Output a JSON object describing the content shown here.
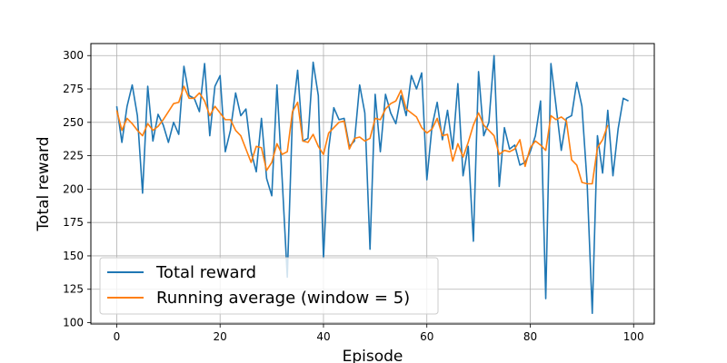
{
  "chart_data": {
    "type": "line",
    "title": "",
    "xlabel": "Episode",
    "ylabel": "Total reward",
    "xlim": [
      -5,
      104
    ],
    "ylim": [
      99,
      309
    ],
    "xticks": [
      0,
      20,
      40,
      60,
      80,
      100
    ],
    "yticks": [
      100,
      125,
      150,
      175,
      200,
      225,
      250,
      275,
      300
    ],
    "grid": true,
    "legend_position": "lower-left",
    "series": [
      {
        "name": "Total reward",
        "color": "#1f77b4",
        "x": [
          0,
          1,
          2,
          3,
          4,
          5,
          6,
          7,
          8,
          9,
          10,
          11,
          12,
          13,
          14,
          15,
          16,
          17,
          18,
          19,
          20,
          21,
          22,
          23,
          24,
          25,
          26,
          27,
          28,
          29,
          30,
          31,
          32,
          33,
          34,
          35,
          36,
          37,
          38,
          39,
          40,
          41,
          42,
          43,
          44,
          45,
          46,
          47,
          48,
          49,
          50,
          51,
          52,
          53,
          54,
          55,
          56,
          57,
          58,
          59,
          60,
          61,
          62,
          63,
          64,
          65,
          66,
          67,
          68,
          69,
          70,
          71,
          72,
          73,
          74,
          75,
          76,
          77,
          78,
          79,
          80,
          81,
          82,
          83,
          84,
          85,
          86,
          87,
          88,
          89,
          90,
          91,
          92,
          93,
          94,
          95,
          96,
          97,
          98,
          99
        ],
        "values": [
          262,
          235,
          262,
          278,
          255,
          197,
          277,
          236,
          256,
          248,
          235,
          250,
          241,
          292,
          270,
          268,
          258,
          294,
          240,
          277,
          285,
          228,
          244,
          272,
          255,
          260,
          228,
          213,
          253,
          208,
          195,
          278,
          208,
          134,
          255,
          289,
          236,
          238,
          295,
          270,
          148,
          230,
          261,
          252,
          253,
          232,
          236,
          278,
          257,
          155,
          271,
          228,
          271,
          257,
          249,
          270,
          255,
          285,
          275,
          287,
          207,
          247,
          265,
          237,
          259,
          230,
          279,
          210,
          232,
          161,
          288,
          240,
          250,
          300,
          202,
          246,
          230,
          233,
          218,
          220,
          228,
          240,
          266,
          118,
          294,
          262,
          229,
          253,
          255,
          280,
          262,
          205,
          107,
          240,
          212,
          259,
          210,
          245,
          268,
          266
        ]
      },
      {
        "name": "Running average (window = 5)",
        "color": "#ff7f0e",
        "x": [
          0,
          1,
          2,
          3,
          4,
          5,
          6,
          7,
          8,
          9,
          10,
          11,
          12,
          13,
          14,
          15,
          16,
          17,
          18,
          19,
          20,
          21,
          22,
          23,
          24,
          25,
          26,
          27,
          28,
          29,
          30,
          31,
          32,
          33,
          34,
          35,
          36,
          37,
          38,
          39,
          40,
          41,
          42,
          43,
          44,
          45,
          46,
          47,
          48,
          49,
          50,
          51,
          52,
          53,
          54,
          55,
          56,
          57,
          58,
          59,
          60,
          61,
          62,
          63,
          64,
          65,
          66,
          67,
          68,
          69,
          70,
          71,
          72,
          73,
          74,
          75,
          76,
          77,
          78,
          79,
          80,
          81,
          82,
          83,
          84,
          85,
          86,
          87,
          88,
          89,
          90,
          91,
          92,
          93,
          94,
          95,
          96,
          97,
          98,
          99
        ],
        "values": [
          259,
          244,
          253,
          249,
          244,
          240,
          249,
          244,
          247,
          252,
          258,
          264,
          265,
          277,
          268,
          268,
          272,
          266,
          255,
          262,
          257,
          252,
          252,
          244,
          240,
          230,
          220,
          232,
          231,
          214,
          220,
          234,
          226,
          228,
          258,
          265,
          236,
          235,
          241,
          232,
          226,
          242,
          246,
          250,
          251,
          230,
          238,
          239,
          236,
          238,
          253,
          252,
          260,
          264,
          266,
          274,
          260,
          257,
          254,
          246,
          242,
          245,
          253,
          240,
          241,
          221,
          234,
          224,
          235,
          248,
          257,
          248,
          244,
          240,
          226,
          229,
          228,
          230,
          237,
          217,
          231,
          236,
          233,
          229,
          255,
          252,
          254,
          251,
          222,
          218,
          205,
          204,
          204,
          231,
          237,
          248,
          null,
          null,
          null,
          null
        ]
      }
    ]
  }
}
